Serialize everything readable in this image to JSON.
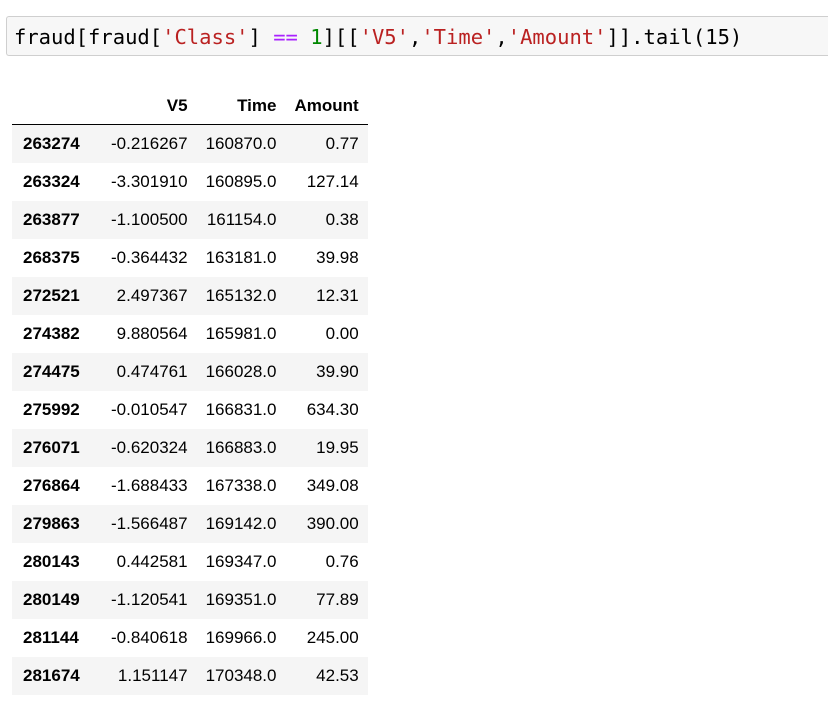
{
  "input_cell": {
    "tokens": [
      {
        "t": "fraud[fraud[",
        "c": "plain"
      },
      {
        "t": "'Class'",
        "c": "str"
      },
      {
        "t": "] ",
        "c": "plain"
      },
      {
        "t": "==",
        "c": "op"
      },
      {
        "t": " ",
        "c": "plain"
      },
      {
        "t": "1",
        "c": "num"
      },
      {
        "t": "][[",
        "c": "plain"
      },
      {
        "t": "'V5'",
        "c": "str"
      },
      {
        "t": ",",
        "c": "plain"
      },
      {
        "t": "'Time'",
        "c": "str"
      },
      {
        "t": ",",
        "c": "plain"
      },
      {
        "t": "'Amount'",
        "c": "str"
      },
      {
        "t": "]].tail(15)",
        "c": "plain"
      }
    ]
  },
  "table": {
    "index_header": "",
    "columns": [
      "V5",
      "Time",
      "Amount"
    ],
    "rows": [
      {
        "index": "263274",
        "values": [
          "-0.216267",
          "160870.0",
          "0.77"
        ]
      },
      {
        "index": "263324",
        "values": [
          "-3.301910",
          "160895.0",
          "127.14"
        ]
      },
      {
        "index": "263877",
        "values": [
          "-1.100500",
          "161154.0",
          "0.38"
        ]
      },
      {
        "index": "268375",
        "values": [
          "-0.364432",
          "163181.0",
          "39.98"
        ]
      },
      {
        "index": "272521",
        "values": [
          "2.497367",
          "165132.0",
          "12.31"
        ]
      },
      {
        "index": "274382",
        "values": [
          "9.880564",
          "165981.0",
          "0.00"
        ]
      },
      {
        "index": "274475",
        "values": [
          "0.474761",
          "166028.0",
          "39.90"
        ]
      },
      {
        "index": "275992",
        "values": [
          "-0.010547",
          "166831.0",
          "634.30"
        ]
      },
      {
        "index": "276071",
        "values": [
          "-0.620324",
          "166883.0",
          "19.95"
        ]
      },
      {
        "index": "276864",
        "values": [
          "-1.688433",
          "167338.0",
          "349.08"
        ]
      },
      {
        "index": "279863",
        "values": [
          "-1.566487",
          "169142.0",
          "390.00"
        ]
      },
      {
        "index": "280143",
        "values": [
          "0.442581",
          "169347.0",
          "0.76"
        ]
      },
      {
        "index": "280149",
        "values": [
          "-1.120541",
          "169351.0",
          "77.89"
        ]
      },
      {
        "index": "281144",
        "values": [
          "-0.840618",
          "169966.0",
          "245.00"
        ]
      },
      {
        "index": "281674",
        "values": [
          "1.151147",
          "170348.0",
          "42.53"
        ]
      }
    ]
  },
  "colors": {
    "string": "#ba2121",
    "operator": "#aa22ff",
    "number": "#008800",
    "cell_background": "#f7f7f7",
    "cell_border": "#cfcfcf",
    "row_stripe": "#f5f5f5"
  }
}
